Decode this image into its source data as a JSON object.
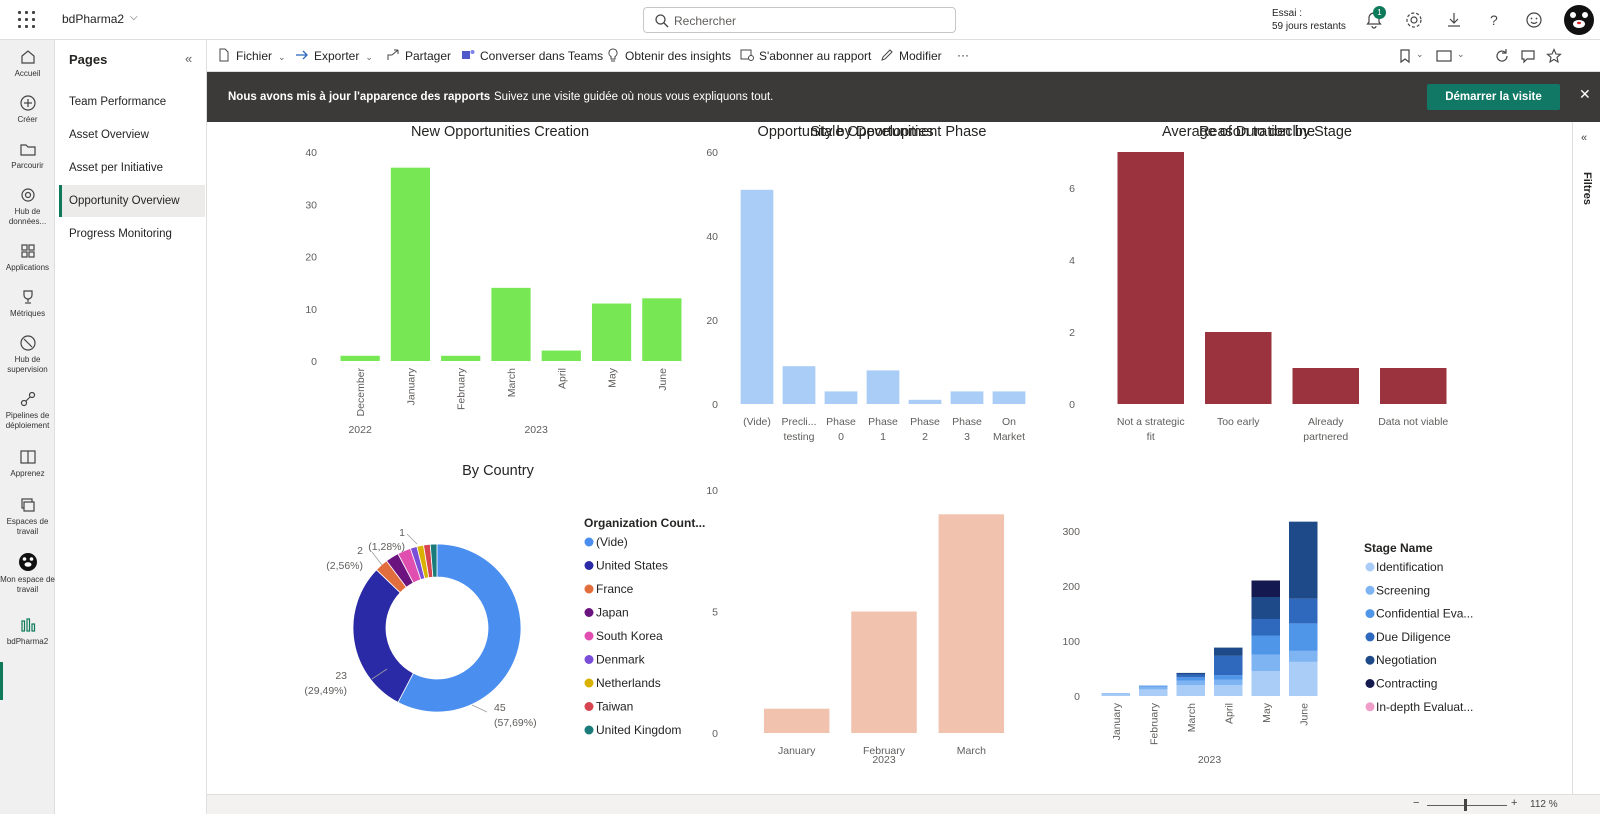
{
  "topbar": {
    "workspace": "bdPharma2",
    "search_placeholder": "Rechercher",
    "trial_line1": "Essai :",
    "trial_line2": "59 jours restants",
    "notification_count": "1"
  },
  "rail": {
    "items": [
      {
        "label": "Accueil"
      },
      {
        "label": "Créer"
      },
      {
        "label": "Parcourir"
      },
      {
        "label": "Hub de données..."
      },
      {
        "label": "Applications"
      },
      {
        "label": "Métriques"
      },
      {
        "label": "Hub de supervision"
      },
      {
        "label": "Pipelines de déploiement"
      },
      {
        "label": "Apprenez"
      },
      {
        "label": "Espaces de travail"
      },
      {
        "label": "Mon espace de travail"
      },
      {
        "label": "bdPharma2"
      }
    ]
  },
  "pages": {
    "title": "Pages",
    "items": [
      {
        "label": "Team Performance"
      },
      {
        "label": "Asset Overview"
      },
      {
        "label": "Asset per Initiative"
      },
      {
        "label": "Opportunity Overview"
      },
      {
        "label": "Progress Monitoring"
      }
    ]
  },
  "toolbar": {
    "file": "Fichier",
    "export": "Exporter",
    "share": "Partager",
    "teams": "Converser dans Teams",
    "insights": "Obtenir des insights",
    "subscribe": "S'abonner au rapport",
    "edit": "Modifier",
    "more": "···"
  },
  "banner": {
    "title": "Nous avons mis à jour l'apparence des rapports",
    "text": "Suivez une visite guidée où nous vous expliquons tout.",
    "button": "Démarrer la visite",
    "close": "✕"
  },
  "filters": {
    "label": "Filtres"
  },
  "status": {
    "zoom": "112 %"
  },
  "colors": {
    "accent": "#117865",
    "green_bar": "#77e854",
    "light_blue": "#a9cdf7",
    "maroon": "#9a333d",
    "peach": "#f1c3ae"
  },
  "chart_data": [
    {
      "type": "bar",
      "title": "New Opportunities Creation",
      "categories": [
        "December",
        "January",
        "February",
        "March",
        "April",
        "May",
        "June"
      ],
      "groups": [
        {
          "label": "2022",
          "count": 1
        },
        {
          "label": "2023",
          "count": 6
        }
      ],
      "values": [
        1,
        37,
        1,
        14,
        2,
        11,
        12
      ],
      "yticks": [
        0,
        10,
        20,
        30,
        40
      ],
      "ylim": [
        0,
        40
      ],
      "color": "#77e854"
    },
    {
      "type": "bar",
      "title": "Opportunity by Development Phase",
      "categories": [
        [
          "(Vide)"
        ],
        [
          "Precli...",
          "testing"
        ],
        [
          "Phase",
          "0"
        ],
        [
          "Phase",
          "1"
        ],
        [
          "Phase",
          "2"
        ],
        [
          "Phase",
          "3"
        ],
        [
          "On",
          "Market"
        ]
      ],
      "values": [
        51,
        9,
        3,
        8,
        1,
        3,
        3
      ],
      "yticks": [
        0,
        20,
        40,
        60
      ],
      "ylim": [
        0,
        60
      ],
      "color": "#a9cdf7"
    },
    {
      "type": "bar",
      "title": "Reason to decline",
      "categories": [
        [
          "Not a strategic",
          "fit"
        ],
        [
          "Too early"
        ],
        [
          "Already",
          "partnered"
        ],
        [
          "Data not viable"
        ]
      ],
      "values": [
        7,
        2,
        1,
        1
      ],
      "yticks": [
        0,
        2,
        4,
        6
      ],
      "ylim": [
        0,
        7
      ],
      "color": "#9a333d"
    },
    {
      "type": "pie",
      "title": "By Country",
      "legend_title": "Organization Count...",
      "slices": [
        {
          "label": "(Vide)",
          "value": 45,
          "color": "#4a8ef0"
        },
        {
          "label": "United States",
          "value": 23,
          "color": "#2b2aa6"
        },
        {
          "label": "France",
          "value": 2,
          "color": "#e26d3d"
        },
        {
          "label": "Japan",
          "value": 2,
          "color": "#6b1480"
        },
        {
          "label": "South Korea",
          "value": 2,
          "color": "#e04fb0"
        },
        {
          "label": "Denmark",
          "value": 1,
          "color": "#7a4ed6"
        },
        {
          "label": "Netherlands",
          "value": 1,
          "color": "#d9b200"
        },
        {
          "label": "Taiwan",
          "value": 1,
          "color": "#d64550"
        },
        {
          "label": "United Kingdom",
          "value": 1,
          "color": "#1b7a7a"
        }
      ],
      "data_labels": [
        {
          "line1": "45",
          "line2": "(57,69%)"
        },
        {
          "line1": "23",
          "line2": "(29,49%)"
        },
        {
          "line1": "2",
          "line2": "(2,56%)"
        },
        {
          "line1": "1",
          "line2": "(1,28%)"
        }
      ]
    },
    {
      "type": "bar",
      "title": "Stale Opportunities",
      "categories": [
        "January",
        "February",
        "March"
      ],
      "group": "2023",
      "values": [
        1,
        5,
        9
      ],
      "yticks": [
        0,
        5,
        10
      ],
      "ylim": [
        0,
        10
      ],
      "color": "#f1c3ae"
    },
    {
      "type": "bar",
      "stacked": true,
      "title": "Average of Duration by Stage",
      "legend_title": "Stage Name",
      "categories": [
        "January",
        "February",
        "March",
        "April",
        "May",
        "June"
      ],
      "group": "2023",
      "yticks": [
        0,
        100,
        200,
        300
      ],
      "ylim": [
        0,
        320
      ],
      "series": [
        {
          "name": "Identification",
          "color": "#a9cdf7",
          "values": [
            3,
            12,
            20,
            20,
            45,
            62
          ]
        },
        {
          "name": "Screening",
          "color": "#7fb4f2",
          "values": [
            2,
            5,
            8,
            10,
            30,
            20
          ]
        },
        {
          "name": "Confidential Eva...",
          "color": "#4f95e8",
          "values": [
            0,
            2,
            6,
            8,
            35,
            50
          ]
        },
        {
          "name": "Due Diligence",
          "color": "#2e69bd",
          "values": [
            0,
            0,
            5,
            35,
            30,
            45
          ]
        },
        {
          "name": "Negotiation",
          "color": "#1f4a8a",
          "values": [
            0,
            0,
            3,
            15,
            40,
            140
          ]
        },
        {
          "name": "Contracting",
          "color": "#141a4f",
          "values": [
            0,
            0,
            0,
            0,
            30,
            0
          ]
        },
        {
          "name": "In-depth Evaluat...",
          "color": "#ee9ec9",
          "values": [
            0,
            0,
            0,
            0,
            0,
            0
          ]
        }
      ]
    }
  ]
}
